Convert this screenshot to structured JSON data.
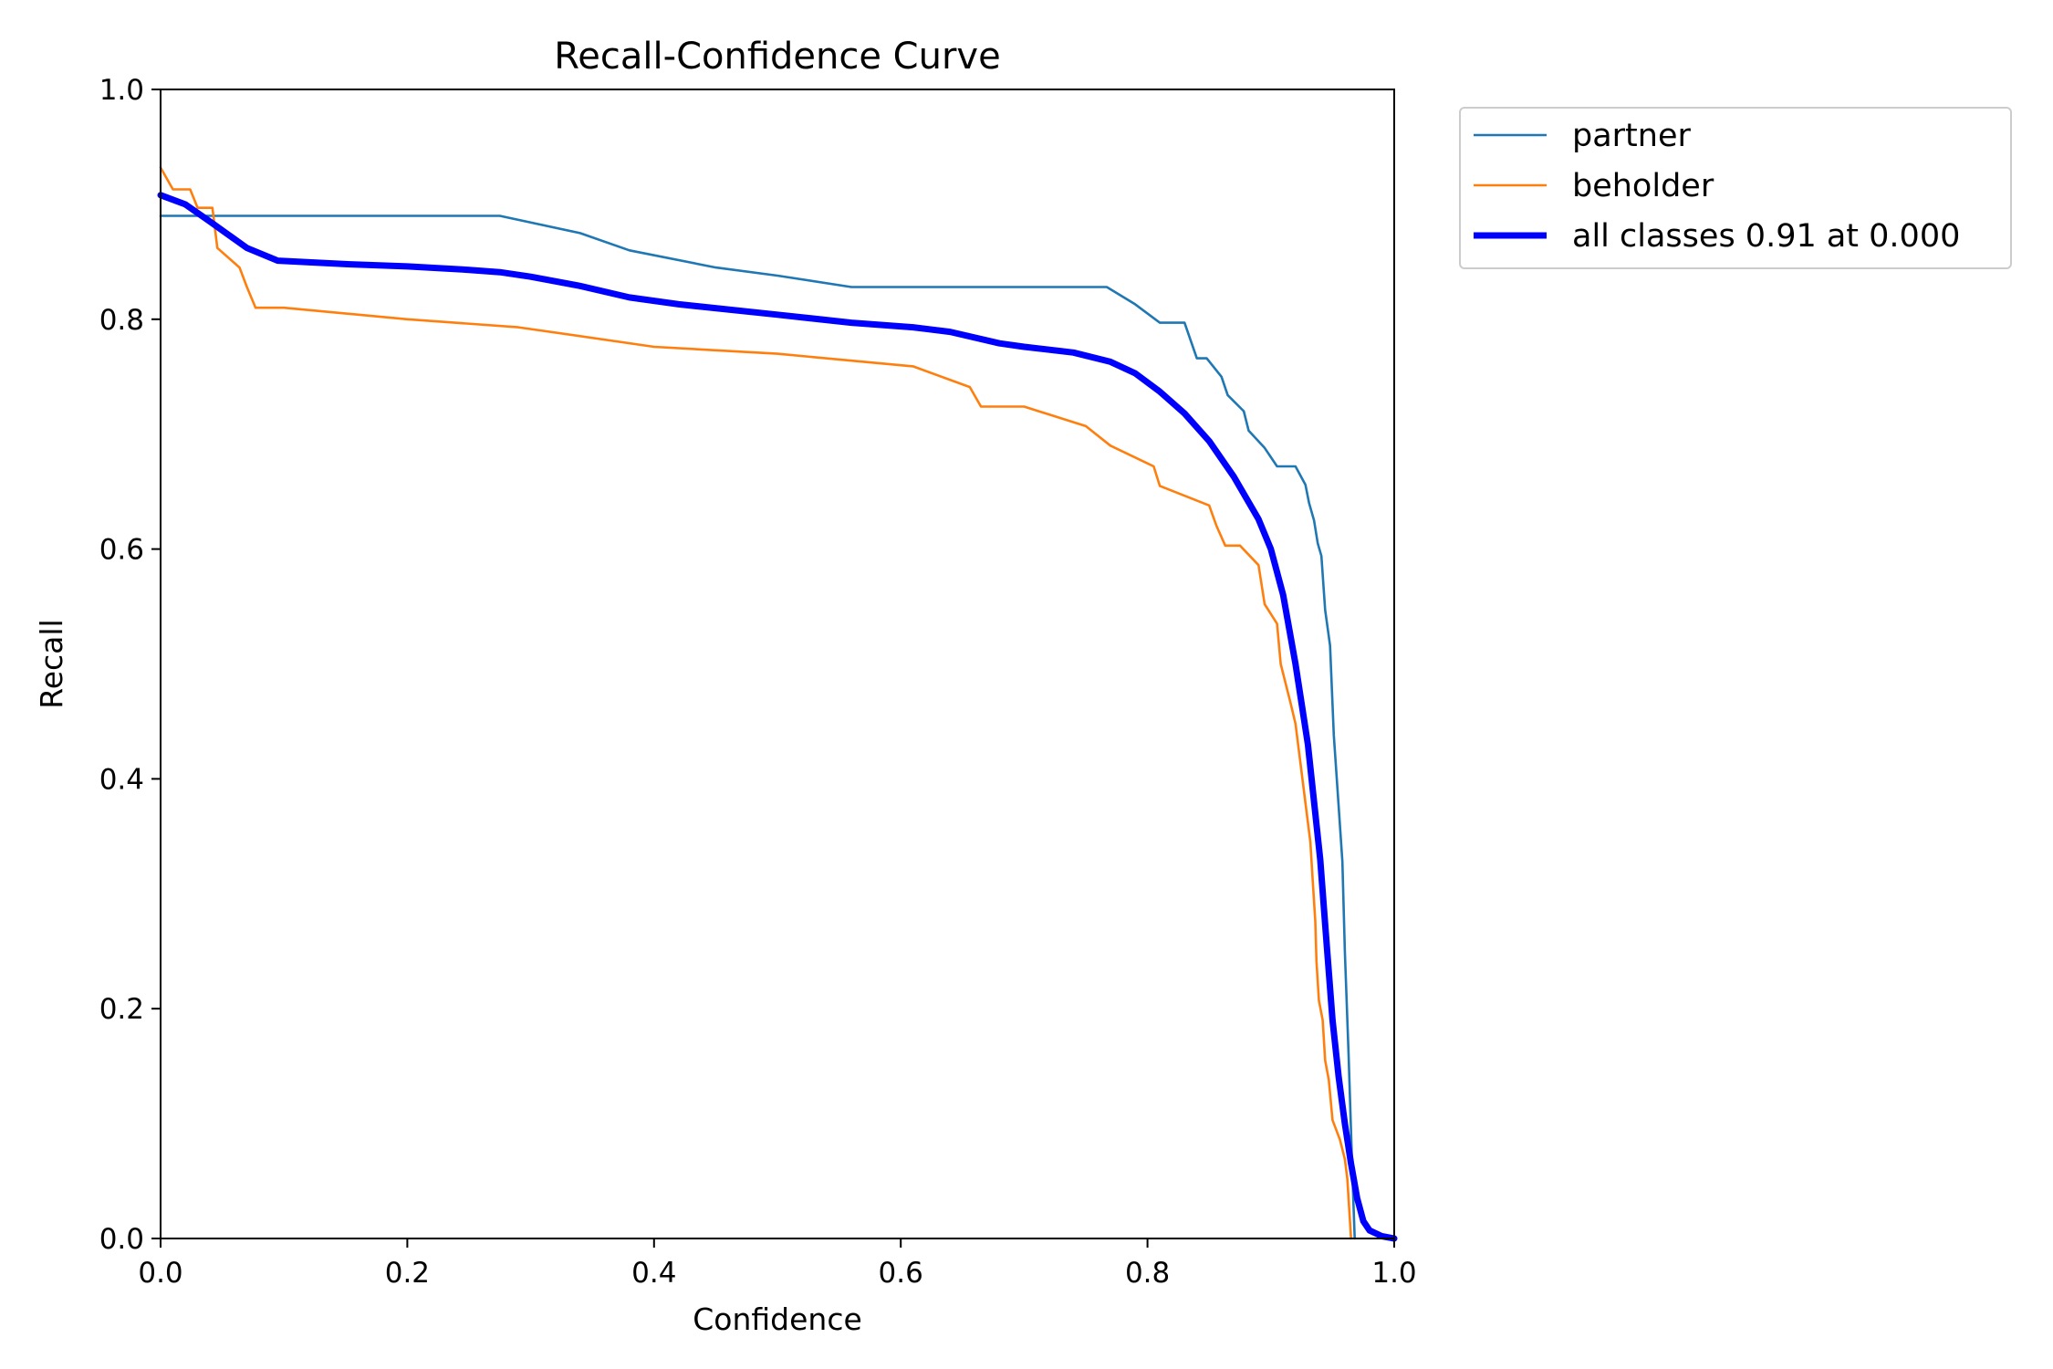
{
  "chart_data": {
    "type": "line",
    "title": "Recall-Confidence Curve",
    "xlabel": "Confidence",
    "ylabel": "Recall",
    "xlim": [
      0,
      1
    ],
    "ylim": [
      0,
      1
    ],
    "xticks": [
      "0.0",
      "0.2",
      "0.4",
      "0.6",
      "0.8",
      "1.0"
    ],
    "yticks": [
      "0.0",
      "0.2",
      "0.4",
      "0.6",
      "0.8",
      "1.0"
    ],
    "grid": false,
    "legend_position": "outside-top-right",
    "series": [
      {
        "name": "partner",
        "color": "#1f77b4",
        "points": [
          [
            0.0,
            0.89
          ],
          [
            0.05,
            0.89
          ],
          [
            0.1,
            0.89
          ],
          [
            0.2,
            0.89
          ],
          [
            0.275,
            0.89
          ],
          [
            0.34,
            0.875
          ],
          [
            0.38,
            0.86
          ],
          [
            0.45,
            0.845
          ],
          [
            0.5,
            0.838
          ],
          [
            0.56,
            0.828
          ],
          [
            0.6,
            0.828
          ],
          [
            0.65,
            0.828
          ],
          [
            0.7,
            0.828
          ],
          [
            0.767,
            0.828
          ],
          [
            0.79,
            0.813
          ],
          [
            0.81,
            0.797
          ],
          [
            0.83,
            0.797
          ],
          [
            0.84,
            0.766
          ],
          [
            0.848,
            0.766
          ],
          [
            0.86,
            0.75
          ],
          [
            0.865,
            0.734
          ],
          [
            0.878,
            0.72
          ],
          [
            0.882,
            0.703
          ],
          [
            0.895,
            0.688
          ],
          [
            0.905,
            0.672
          ],
          [
            0.92,
            0.672
          ],
          [
            0.928,
            0.656
          ],
          [
            0.931,
            0.64
          ],
          [
            0.935,
            0.625
          ],
          [
            0.938,
            0.605
          ],
          [
            0.941,
            0.594
          ],
          [
            0.944,
            0.547
          ],
          [
            0.948,
            0.516
          ],
          [
            0.951,
            0.438
          ],
          [
            0.955,
            0.375
          ],
          [
            0.958,
            0.328
          ],
          [
            0.96,
            0.25
          ],
          [
            0.963,
            0.16
          ],
          [
            0.966,
            0.06
          ],
          [
            0.968,
            0.0
          ]
        ]
      },
      {
        "name": "beholder",
        "color": "#ff7f0e",
        "points": [
          [
            0.0,
            0.932
          ],
          [
            0.01,
            0.913
          ],
          [
            0.024,
            0.913
          ],
          [
            0.03,
            0.897
          ],
          [
            0.042,
            0.897
          ],
          [
            0.046,
            0.862
          ],
          [
            0.064,
            0.845
          ],
          [
            0.07,
            0.828
          ],
          [
            0.077,
            0.81
          ],
          [
            0.1,
            0.81
          ],
          [
            0.2,
            0.8
          ],
          [
            0.29,
            0.793
          ],
          [
            0.4,
            0.776
          ],
          [
            0.5,
            0.77
          ],
          [
            0.61,
            0.759
          ],
          [
            0.656,
            0.741
          ],
          [
            0.665,
            0.724
          ],
          [
            0.7,
            0.724
          ],
          [
            0.75,
            0.707
          ],
          [
            0.77,
            0.69
          ],
          [
            0.805,
            0.672
          ],
          [
            0.81,
            0.655
          ],
          [
            0.85,
            0.638
          ],
          [
            0.856,
            0.62
          ],
          [
            0.863,
            0.603
          ],
          [
            0.875,
            0.603
          ],
          [
            0.89,
            0.586
          ],
          [
            0.895,
            0.552
          ],
          [
            0.905,
            0.535
          ],
          [
            0.908,
            0.5
          ],
          [
            0.912,
            0.483
          ],
          [
            0.916,
            0.466
          ],
          [
            0.92,
            0.448
          ],
          [
            0.924,
            0.414
          ],
          [
            0.928,
            0.379
          ],
          [
            0.932,
            0.345
          ],
          [
            0.934,
            0.31
          ],
          [
            0.936,
            0.276
          ],
          [
            0.937,
            0.241
          ],
          [
            0.939,
            0.207
          ],
          [
            0.942,
            0.19
          ],
          [
            0.944,
            0.155
          ],
          [
            0.947,
            0.138
          ],
          [
            0.95,
            0.103
          ],
          [
            0.956,
            0.086
          ],
          [
            0.96,
            0.069
          ],
          [
            0.962,
            0.052
          ],
          [
            0.965,
            0.0
          ]
        ]
      },
      {
        "name": "all classes 0.91 at 0.000",
        "color": "#0000ff",
        "thick": true,
        "points": [
          [
            0.0,
            0.908
          ],
          [
            0.02,
            0.9
          ],
          [
            0.04,
            0.885
          ],
          [
            0.07,
            0.862
          ],
          [
            0.095,
            0.851
          ],
          [
            0.15,
            0.848
          ],
          [
            0.2,
            0.846
          ],
          [
            0.25,
            0.843
          ],
          [
            0.275,
            0.841
          ],
          [
            0.3,
            0.837
          ],
          [
            0.34,
            0.829
          ],
          [
            0.38,
            0.819
          ],
          [
            0.42,
            0.813
          ],
          [
            0.5,
            0.804
          ],
          [
            0.56,
            0.797
          ],
          [
            0.61,
            0.793
          ],
          [
            0.64,
            0.789
          ],
          [
            0.68,
            0.779
          ],
          [
            0.7,
            0.776
          ],
          [
            0.74,
            0.771
          ],
          [
            0.77,
            0.763
          ],
          [
            0.79,
            0.753
          ],
          [
            0.81,
            0.737
          ],
          [
            0.83,
            0.718
          ],
          [
            0.85,
            0.694
          ],
          [
            0.87,
            0.663
          ],
          [
            0.89,
            0.626
          ],
          [
            0.9,
            0.6
          ],
          [
            0.91,
            0.56
          ],
          [
            0.92,
            0.5
          ],
          [
            0.93,
            0.43
          ],
          [
            0.94,
            0.33
          ],
          [
            0.945,
            0.26
          ],
          [
            0.95,
            0.19
          ],
          [
            0.955,
            0.14
          ],
          [
            0.96,
            0.1
          ],
          [
            0.965,
            0.065
          ],
          [
            0.97,
            0.035
          ],
          [
            0.975,
            0.015
          ],
          [
            0.98,
            0.007
          ],
          [
            0.99,
            0.002
          ],
          [
            1.0,
            0.0
          ]
        ]
      }
    ]
  }
}
